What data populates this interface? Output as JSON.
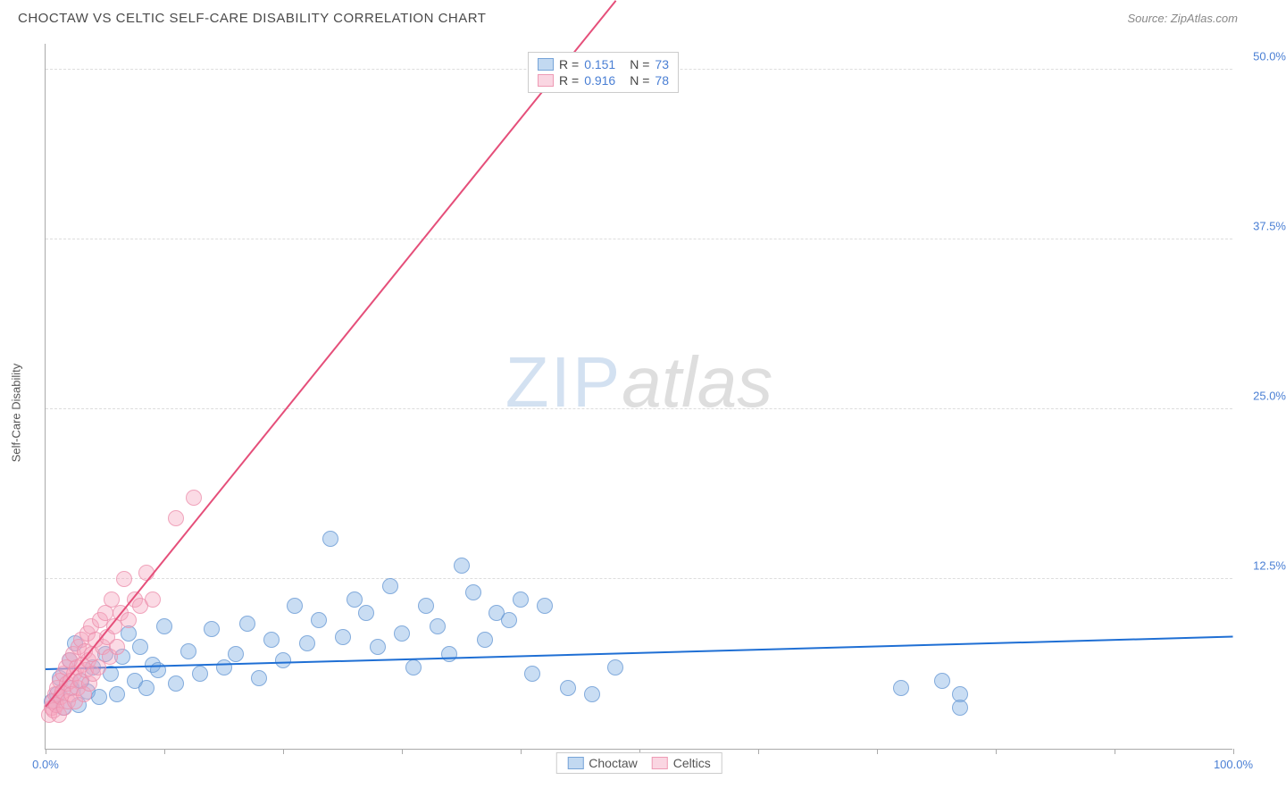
{
  "header": {
    "title": "CHOCTAW VS CELTIC SELF-CARE DISABILITY CORRELATION CHART",
    "source_label": "Source: ",
    "source_value": "ZipAtlas.com"
  },
  "watermark": {
    "part1": "ZIP",
    "part2": "atlas"
  },
  "chart": {
    "type": "scatter",
    "y_axis_label": "Self-Care Disability",
    "xlim": [
      0,
      100
    ],
    "ylim": [
      0,
      52
    ],
    "y_ticks": [
      {
        "value": 12.5,
        "label": "12.5%"
      },
      {
        "value": 25.0,
        "label": "25.0%"
      },
      {
        "value": 37.5,
        "label": "37.5%"
      },
      {
        "value": 50.0,
        "label": "50.0%"
      }
    ],
    "x_tick_values": [
      0,
      10,
      20,
      30,
      40,
      50,
      60,
      70,
      80,
      90,
      100
    ],
    "x_tick_labels": {
      "start": "0.0%",
      "end": "100.0%"
    },
    "background_color": "#ffffff",
    "grid_color": "#dddddd",
    "series": [
      {
        "name": "Choctaw",
        "color_fill": "rgba(120,170,225,0.4)",
        "color_stroke": "rgba(100,150,210,0.7)",
        "marker_radius": 9,
        "R": "0.151",
        "N": "73",
        "trend": {
          "x1": 0,
          "y1": 5.8,
          "x2": 100,
          "y2": 8.2,
          "color": "#1f6fd4",
          "width": 2
        },
        "points": [
          [
            0.5,
            3.5
          ],
          [
            1.0,
            4.0
          ],
          [
            1.2,
            5.2
          ],
          [
            1.5,
            3.0
          ],
          [
            2.0,
            6.5
          ],
          [
            2.2,
            4.5
          ],
          [
            2.5,
            7.8
          ],
          [
            2.8,
            3.2
          ],
          [
            3.0,
            5.0
          ],
          [
            3.5,
            4.2
          ],
          [
            4.0,
            6.0
          ],
          [
            4.5,
            3.8
          ],
          [
            5.0,
            7.0
          ],
          [
            5.5,
            5.5
          ],
          [
            6.0,
            4.0
          ],
          [
            6.5,
            6.8
          ],
          [
            7.0,
            8.5
          ],
          [
            7.5,
            5.0
          ],
          [
            8.0,
            7.5
          ],
          [
            8.5,
            4.5
          ],
          [
            9.0,
            6.2
          ],
          [
            9.5,
            5.8
          ],
          [
            10.0,
            9.0
          ],
          [
            11.0,
            4.8
          ],
          [
            12.0,
            7.2
          ],
          [
            13.0,
            5.5
          ],
          [
            14.0,
            8.8
          ],
          [
            15.0,
            6.0
          ],
          [
            16.0,
            7.0
          ],
          [
            17.0,
            9.2
          ],
          [
            18.0,
            5.2
          ],
          [
            19.0,
            8.0
          ],
          [
            20.0,
            6.5
          ],
          [
            21.0,
            10.5
          ],
          [
            22.0,
            7.8
          ],
          [
            23.0,
            9.5
          ],
          [
            24.0,
            15.5
          ],
          [
            25.0,
            8.2
          ],
          [
            26.0,
            11.0
          ],
          [
            27.0,
            10.0
          ],
          [
            28.0,
            7.5
          ],
          [
            29.0,
            12.0
          ],
          [
            30.0,
            8.5
          ],
          [
            31.0,
            6.0
          ],
          [
            32.0,
            10.5
          ],
          [
            33.0,
            9.0
          ],
          [
            34.0,
            7.0
          ],
          [
            35.0,
            13.5
          ],
          [
            36.0,
            11.5
          ],
          [
            37.0,
            8.0
          ],
          [
            38.0,
            10.0
          ],
          [
            39.0,
            9.5
          ],
          [
            40.0,
            11.0
          ],
          [
            41.0,
            5.5
          ],
          [
            42.0,
            10.5
          ],
          [
            44.0,
            4.5
          ],
          [
            46.0,
            4.0
          ],
          [
            48.0,
            6.0
          ],
          [
            72.0,
            4.5
          ],
          [
            75.5,
            5.0
          ],
          [
            77.0,
            4.0
          ],
          [
            77.0,
            3.0
          ]
        ]
      },
      {
        "name": "Celtics",
        "color_fill": "rgba(245,165,190,0.4)",
        "color_stroke": "rgba(235,140,170,0.7)",
        "marker_radius": 9,
        "R": "0.916",
        "N": "78",
        "trend": {
          "x1": 0,
          "y1": 3.0,
          "x2": 48,
          "y2": 55.0,
          "color": "#e54f7a",
          "width": 2
        },
        "points": [
          [
            0.3,
            2.5
          ],
          [
            0.5,
            3.0
          ],
          [
            0.6,
            3.5
          ],
          [
            0.7,
            2.8
          ],
          [
            0.8,
            4.0
          ],
          [
            0.9,
            3.2
          ],
          [
            1.0,
            4.5
          ],
          [
            1.1,
            2.5
          ],
          [
            1.2,
            5.0
          ],
          [
            1.3,
            3.8
          ],
          [
            1.4,
            4.2
          ],
          [
            1.5,
            5.5
          ],
          [
            1.6,
            3.0
          ],
          [
            1.7,
            6.0
          ],
          [
            1.8,
            4.8
          ],
          [
            1.9,
            3.5
          ],
          [
            2.0,
            6.5
          ],
          [
            2.1,
            5.0
          ],
          [
            2.2,
            4.0
          ],
          [
            2.3,
            7.0
          ],
          [
            2.4,
            5.5
          ],
          [
            2.5,
            3.5
          ],
          [
            2.6,
            6.0
          ],
          [
            2.7,
            4.5
          ],
          [
            2.8,
            7.5
          ],
          [
            2.9,
            5.0
          ],
          [
            3.0,
            8.0
          ],
          [
            3.1,
            6.2
          ],
          [
            3.2,
            4.0
          ],
          [
            3.3,
            7.2
          ],
          [
            3.4,
            5.8
          ],
          [
            3.5,
            8.5
          ],
          [
            3.6,
            6.5
          ],
          [
            3.7,
            4.8
          ],
          [
            3.8,
            9.0
          ],
          [
            3.9,
            7.0
          ],
          [
            4.0,
            5.5
          ],
          [
            4.2,
            8.0
          ],
          [
            4.4,
            6.0
          ],
          [
            4.6,
            9.5
          ],
          [
            4.8,
            7.5
          ],
          [
            5.0,
            10.0
          ],
          [
            5.2,
            8.2
          ],
          [
            5.4,
            6.8
          ],
          [
            5.6,
            11.0
          ],
          [
            5.8,
            9.0
          ],
          [
            6.0,
            7.5
          ],
          [
            6.3,
            10.0
          ],
          [
            6.6,
            12.5
          ],
          [
            7.0,
            9.5
          ],
          [
            7.5,
            11.0
          ],
          [
            8.0,
            10.5
          ],
          [
            8.5,
            13.0
          ],
          [
            9.0,
            11.0
          ],
          [
            11.0,
            17.0
          ],
          [
            12.5,
            18.5
          ]
        ]
      }
    ]
  },
  "legend_top": {
    "r_label": "R =",
    "n_label": "N ="
  },
  "legend_bottom": {
    "items": [
      "Choctaw",
      "Celtics"
    ]
  }
}
